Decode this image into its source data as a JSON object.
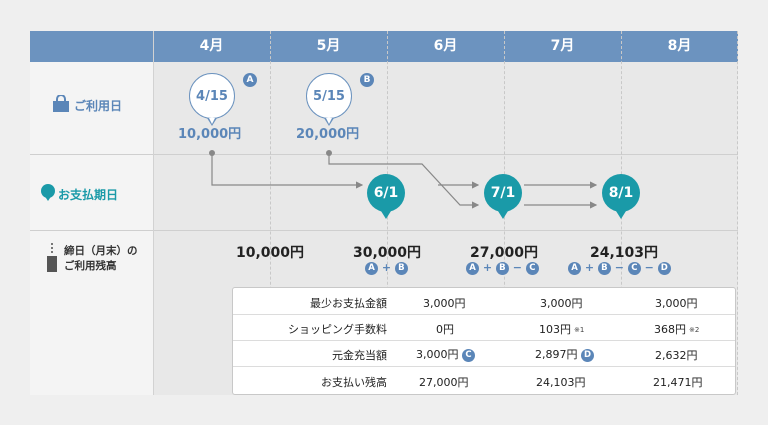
{
  "months": [
    "4月",
    "5月",
    "6月",
    "7月",
    "8月"
  ],
  "rows": {
    "usage_label": "ご利用日",
    "payment_label": "お支払期日",
    "balance_label_line1": "締日（月末）の",
    "balance_label_line2": "ご利用残高"
  },
  "usage": [
    {
      "date": "4/15",
      "badge": "A",
      "amount": "10,000円"
    },
    {
      "date": "5/15",
      "badge": "B",
      "amount": "20,000円"
    }
  ],
  "payments": [
    "6/1",
    "7/1",
    "8/1"
  ],
  "balances": [
    {
      "amount": "10,000円"
    },
    {
      "amount": "30,000円",
      "formula": [
        {
          "badge": "A"
        },
        {
          "op": "+"
        },
        {
          "badge": "B"
        }
      ]
    },
    {
      "amount": "27,000円",
      "formula": [
        {
          "badge": "A"
        },
        {
          "op": "+"
        },
        {
          "badge": "B"
        },
        {
          "op": "−"
        },
        {
          "badge": "C"
        }
      ]
    },
    {
      "amount": "24,103円",
      "formula": [
        {
          "badge": "A"
        },
        {
          "op": "+"
        },
        {
          "badge": "B"
        },
        {
          "op": "−"
        },
        {
          "badge": "C"
        },
        {
          "op": "−"
        },
        {
          "badge": "D"
        }
      ]
    }
  ],
  "table": {
    "rows": [
      {
        "label": "最少お支払金額",
        "values": [
          "3,000円",
          "3,000円",
          "3,000円"
        ]
      },
      {
        "label": "ショッピング手数料",
        "values": [
          "0円",
          "103円",
          "368円"
        ],
        "notes": [
          "",
          "※1",
          "※2"
        ]
      },
      {
        "label": "元金充当額",
        "values": [
          "3,000円",
          "2,897円",
          "2,632円"
        ],
        "badges": [
          "C",
          "D",
          ""
        ]
      },
      {
        "label": "お支払い残高",
        "values": [
          "27,000円",
          "24,103円",
          "21,471円"
        ]
      }
    ]
  },
  "colors": {
    "header": "#6c93bf",
    "accent": "#5b86b8",
    "teal": "#1a9aa8"
  }
}
